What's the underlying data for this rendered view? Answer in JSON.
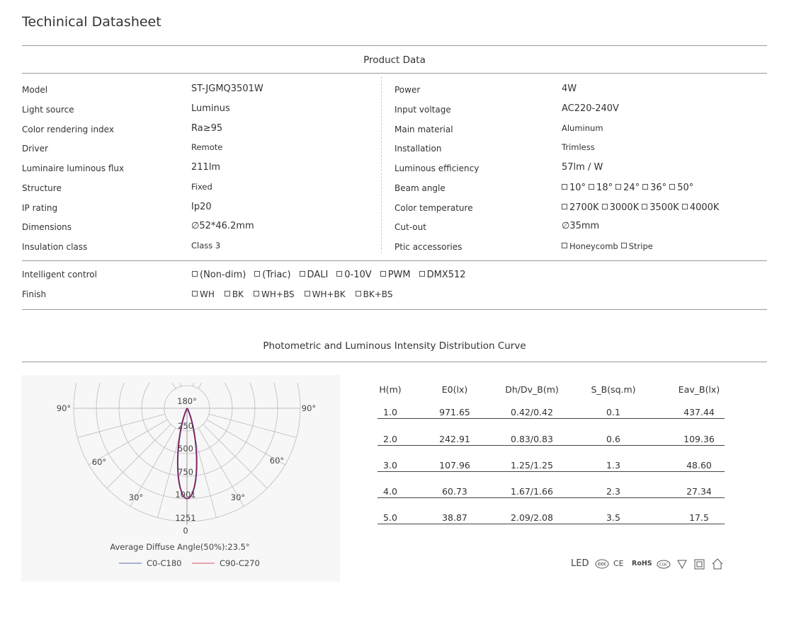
{
  "title": "Techinical Datasheet",
  "product_data": {
    "heading": "Product Data",
    "left": [
      {
        "label": "Model",
        "value": "ST-JGMQ3501W"
      },
      {
        "label": "Light source",
        "value": "Luminus"
      },
      {
        "label": "Color rendering index",
        "value": "Ra≥95"
      },
      {
        "label": "Driver",
        "value": "Remote"
      },
      {
        "label": "Luminaire luminous flux",
        "value": "211lm"
      },
      {
        "label": "Structure",
        "value": "Fixed"
      },
      {
        "label": "IP rating",
        "value": "Ip20"
      },
      {
        "label": "Dimensions",
        "value": "∅52*46.2mm"
      },
      {
        "label": "Insulation class",
        "value": "Class 3"
      }
    ],
    "right": [
      {
        "label": "Power",
        "value": "4W"
      },
      {
        "label": "Input voltage",
        "value": "AC220-240V"
      },
      {
        "label": "Main material",
        "value": "Aluminum"
      },
      {
        "label": "Installation",
        "value": "Trimless"
      },
      {
        "label": "Luminous efficiency",
        "value": "57lm / W"
      },
      {
        "label": "Beam angle",
        "options": [
          "10°",
          "18°",
          "24°",
          "36°",
          "50°"
        ]
      },
      {
        "label": "Color temperature",
        "options": [
          "2700K",
          "3000K",
          "3500K",
          "4000K"
        ]
      },
      {
        "label": "Cut-out",
        "value": "∅35mm"
      },
      {
        "label": "Ptic accessories",
        "options": [
          "Honeycomb",
          "Stripe"
        ]
      }
    ]
  },
  "intelligent_control": {
    "label": "Intelligent control",
    "options": [
      "(Non-dim)",
      "(Triac)",
      "DALI",
      "0-10V",
      "PWM",
      "DMX512"
    ]
  },
  "finish": {
    "label": "Finish",
    "options": [
      "WH",
      "BK",
      "WH+BS",
      "WH+BK",
      "BK+BS"
    ]
  },
  "photometric": {
    "heading": "Photometric and Luminous Intensity Distribution Curve",
    "chart_data": {
      "type": "polar",
      "angle_labels": [
        "180°",
        "90°",
        "90°",
        "60°",
        "60°",
        "30°",
        "30°",
        "0"
      ],
      "radial_ticks": [
        "250",
        "500",
        "750",
        "1001",
        "1251"
      ],
      "radial_max": 1251,
      "caption": "Average Diffuse Angle(50%):23.5°",
      "series": [
        {
          "name": "C0-C180",
          "color": "#8a9bc4"
        },
        {
          "name": "C90-C270",
          "color": "#e08a9a"
        }
      ],
      "curve_color": "#8a1f5e",
      "grid": true
    },
    "table": {
      "headers": [
        "H(m)",
        "E0(lx)",
        "Dh/Dv_B(m)",
        "S_B(sq.m)",
        "Eav_B(lx)"
      ],
      "rows": [
        [
          "1.0",
          "971.65",
          "0.42/0.42",
          "0.1",
          "437.44"
        ],
        [
          "2.0",
          "242.91",
          "0.83/0.83",
          "0.6",
          "109.36"
        ],
        [
          "3.0",
          "107.96",
          "1.25/1.25",
          "1.3",
          "48.60"
        ],
        [
          "4.0",
          "60.73",
          "1.67/1.66",
          "2.3",
          "27.34"
        ],
        [
          "5.0",
          "38.87",
          "2.09/2.08",
          "3.5",
          "17.5"
        ]
      ]
    }
  },
  "certifications": {
    "led_label": "LED",
    "ce": "CE",
    "rohs": "RoHS",
    "ccc": "CCC",
    "cqc": "CQC",
    "f_mark": "F"
  }
}
